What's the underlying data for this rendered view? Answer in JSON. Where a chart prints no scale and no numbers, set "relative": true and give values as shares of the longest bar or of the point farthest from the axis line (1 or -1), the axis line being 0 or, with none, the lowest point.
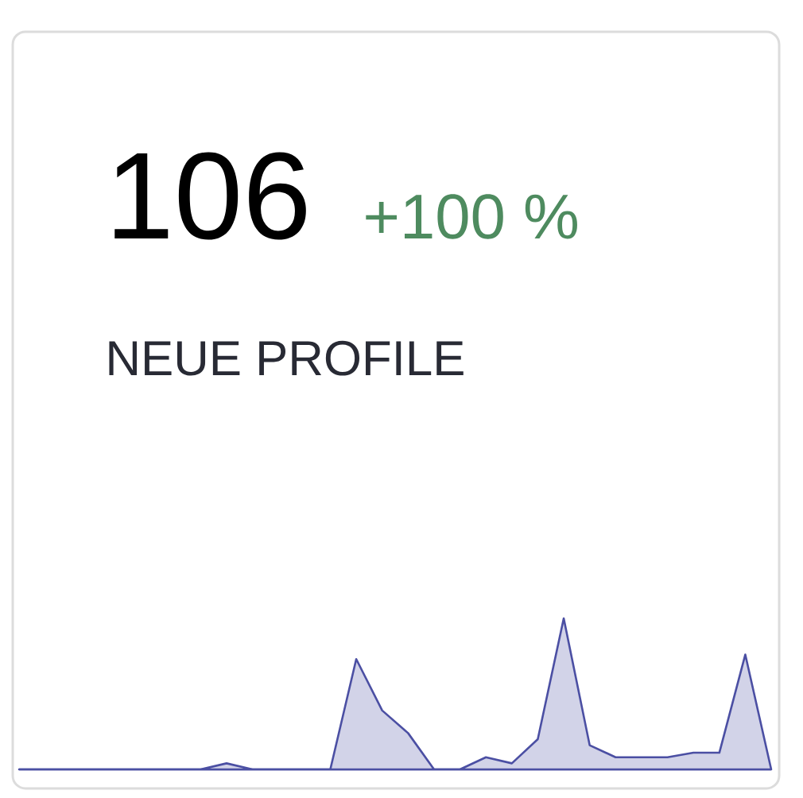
{
  "chart_data": {
    "type": "area",
    "title": "106",
    "subtitle": "+100 %",
    "annotations": [
      "NEUE PROFILE"
    ],
    "relative": true,
    "categories": [
      null,
      null,
      null,
      null,
      null,
      null,
      null,
      null,
      null,
      null,
      null,
      null,
      null,
      null,
      null,
      null,
      null,
      null,
      null,
      null,
      null,
      null,
      null,
      null,
      null,
      null,
      null,
      null,
      null,
      null
    ],
    "series": [
      {
        "color": "#4b4fa3",
        "values": [
          0,
          0,
          0,
          0,
          0,
          0,
          0,
          0,
          0.04,
          0,
          0,
          0,
          0,
          0.73,
          0.39,
          0.24,
          0,
          0,
          0.08,
          0.04,
          0.2,
          1,
          0.16,
          0.08,
          0.08,
          0.08,
          0.11,
          0.11,
          0.76,
          0
        ]
      }
    ]
  }
}
